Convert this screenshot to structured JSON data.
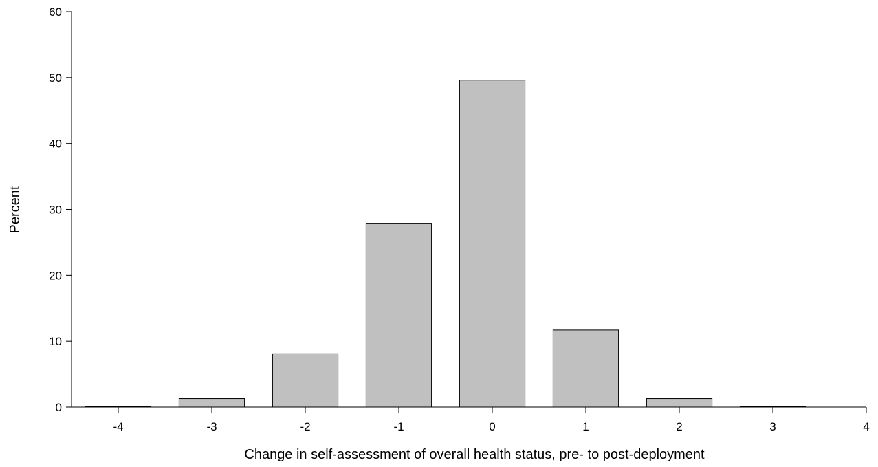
{
  "chart_data": {
    "type": "bar",
    "title": "",
    "xlabel": "Change in self-assessment of overall health status, pre- to post-deployment",
    "ylabel": "Percent",
    "x": [
      -4,
      -3,
      -2,
      -1,
      0,
      1,
      2,
      3
    ],
    "values": [
      0.1,
      1.3,
      8.1,
      27.9,
      49.6,
      11.7,
      1.3,
      0.1
    ],
    "xlim": [
      -4.5,
      4
    ],
    "ylim": [
      0,
      60
    ],
    "x_ticks": [
      "-4",
      "-3",
      "-2",
      "-1",
      "0",
      "1",
      "2",
      "3",
      "4"
    ],
    "y_ticks": [
      "0",
      "10",
      "20",
      "30",
      "40",
      "50",
      "60"
    ],
    "grid": false,
    "legend": "none",
    "bar_color": "#c0c0c0",
    "edge_color": "#000000"
  }
}
